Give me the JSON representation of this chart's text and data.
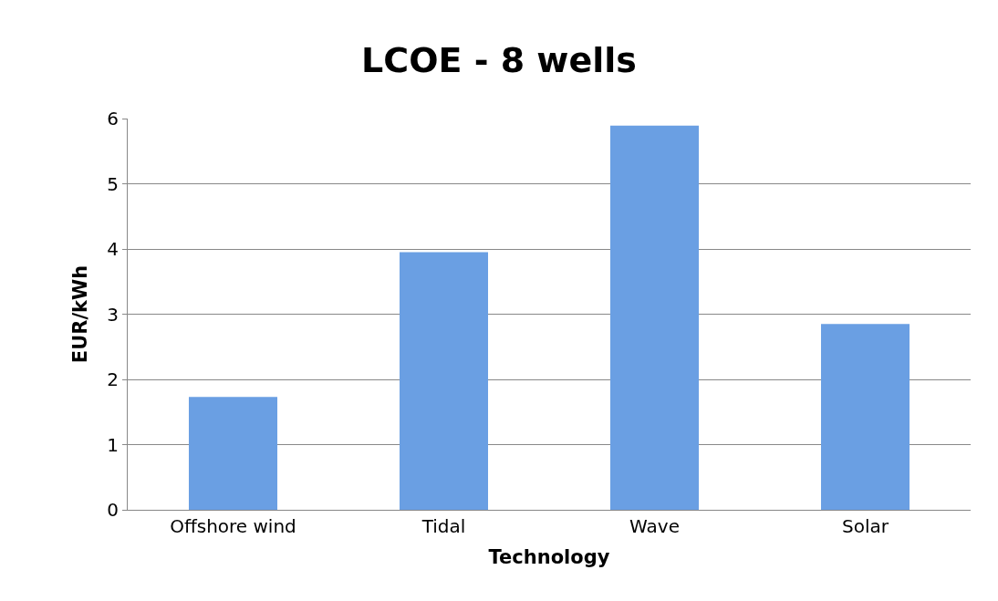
{
  "chart_data": {
    "type": "bar",
    "title": "LCOE - 8 wells",
    "xlabel": "Technology",
    "ylabel": "EUR/kWh",
    "categories": [
      "Offshore wind",
      "Tidal",
      "Wave",
      "Solar"
    ],
    "values": [
      1.73,
      3.95,
      5.89,
      2.85
    ],
    "color": "#6a9fe3",
    "ylim": [
      0,
      6
    ],
    "yticks": [
      0,
      1,
      2,
      3,
      4,
      5,
      6
    ],
    "grid": "y"
  }
}
